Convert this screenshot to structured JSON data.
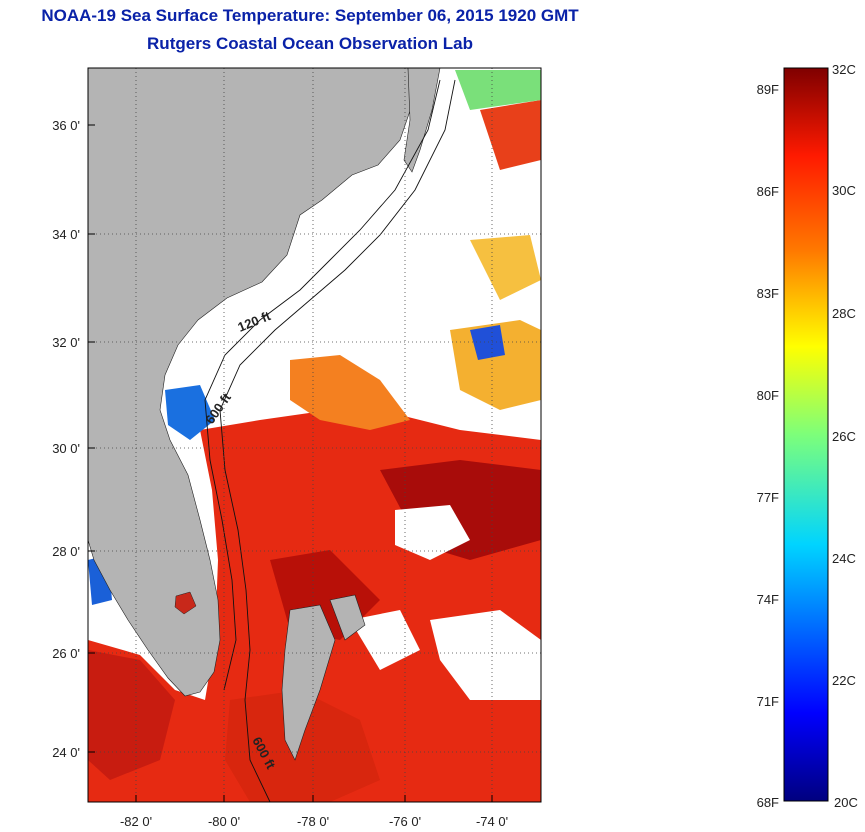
{
  "header": {
    "title": "NOAA-19 Sea Surface Temperature:  September 06, 2015 1920 GMT",
    "subtitle": "Rutgers Coastal Ocean Observation Lab"
  },
  "map": {
    "lat_ticks": [
      "24 0'",
      "26 0'",
      "28 0'",
      "30 0'",
      "32 0'",
      "34 0'",
      "36 0'"
    ],
    "lon_ticks": [
      "-82 0'",
      "-80 0'",
      "-78 0'",
      "-76 0'",
      "-74 0'"
    ],
    "contour_labels": [
      "120 ft",
      "600 ft",
      "600 ft"
    ],
    "colors": {
      "land": "#b4b4b4",
      "cloud": "#ffffff"
    }
  },
  "colorbar": {
    "celsius_labels": [
      "32C",
      "30C",
      "28C",
      "26C",
      "24C",
      "22C",
      "20C"
    ],
    "fahrenheit_labels": [
      "89F",
      "86F",
      "83F",
      "80F",
      "77F",
      "74F",
      "71F",
      "68F"
    ],
    "range_c": [
      20,
      32
    ]
  }
}
